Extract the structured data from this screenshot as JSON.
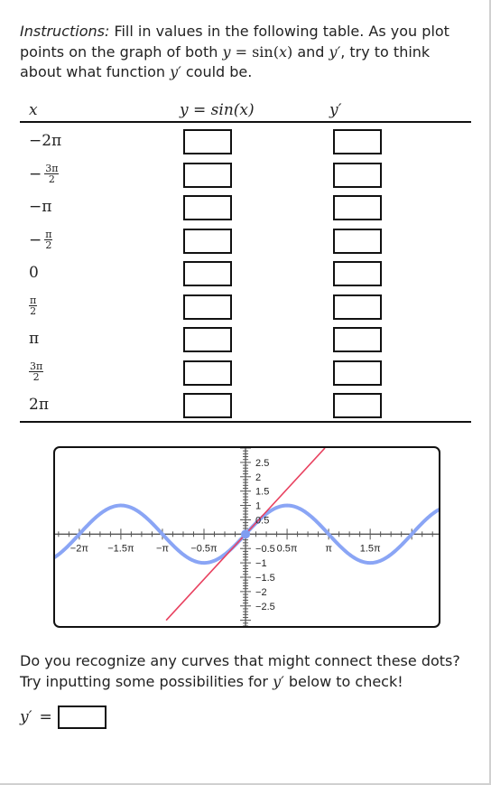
{
  "instructions": {
    "label": "Instructions:",
    "part1": " Fill in values in the following table. As you plot points on the graph of both ",
    "eq_y": "y",
    "eq_eq": " = sin(",
    "eq_x": "x",
    "eq_close": ")",
    "part2": " and ",
    "yprime": "y′",
    "part3": ", try to think about what function ",
    "part4": " could be."
  },
  "table": {
    "headers": {
      "x": "x",
      "y_sin": "y = sin(x)",
      "y_prime": "y′"
    },
    "rows": [
      {
        "x": "−2π"
      },
      {
        "x_sign": "−",
        "x_num": "3π",
        "x_den": "2"
      },
      {
        "x": "−π"
      },
      {
        "x_sign": "−",
        "x_num": "π",
        "x_den": "2"
      },
      {
        "x": "0"
      },
      {
        "x_num": "π",
        "x_den": "2"
      },
      {
        "x": "π"
      },
      {
        "x_num": "3π",
        "x_den": "2"
      },
      {
        "x": "2π"
      }
    ]
  },
  "graph": {
    "colors": {
      "sine": "#8aa5f5",
      "line": "#e8415f",
      "axis": "#555555",
      "point": "#7f9df2"
    },
    "x_ticks": [
      "−2π",
      "−1.5π",
      "−π",
      "−0.5π",
      "0.5π",
      "π",
      "1.5π"
    ],
    "y_ticks_pos": [
      "2.5",
      "2",
      "1.5",
      "1",
      "0.5"
    ],
    "y_ticks_neg": [
      "−0.5",
      "−1",
      "−1.5",
      "−2",
      "−2.5"
    ]
  },
  "chart_data": {
    "type": "line",
    "title": "",
    "xlabel": "",
    "ylabel": "",
    "xlim": [
      -7.2,
      7.3
    ],
    "ylim": [
      -3.2,
      3.0
    ],
    "grid": false,
    "series": [
      {
        "function": "sin(x)",
        "x": [
          -7.2,
          7.3
        ],
        "color": "#8aa5f5"
      },
      {
        "function": "x",
        "x": [
          -3.0,
          3.0
        ],
        "color": "#e8415f"
      }
    ],
    "points": [
      {
        "x": 0,
        "y": 0
      }
    ]
  },
  "prompt": {
    "part1": "Do you recognize any curves that might connect these dots? Try inputting some possibilities for ",
    "yprime": "y′",
    "part2": " below to check!"
  },
  "answer": {
    "label": "y′",
    "eq": "="
  }
}
